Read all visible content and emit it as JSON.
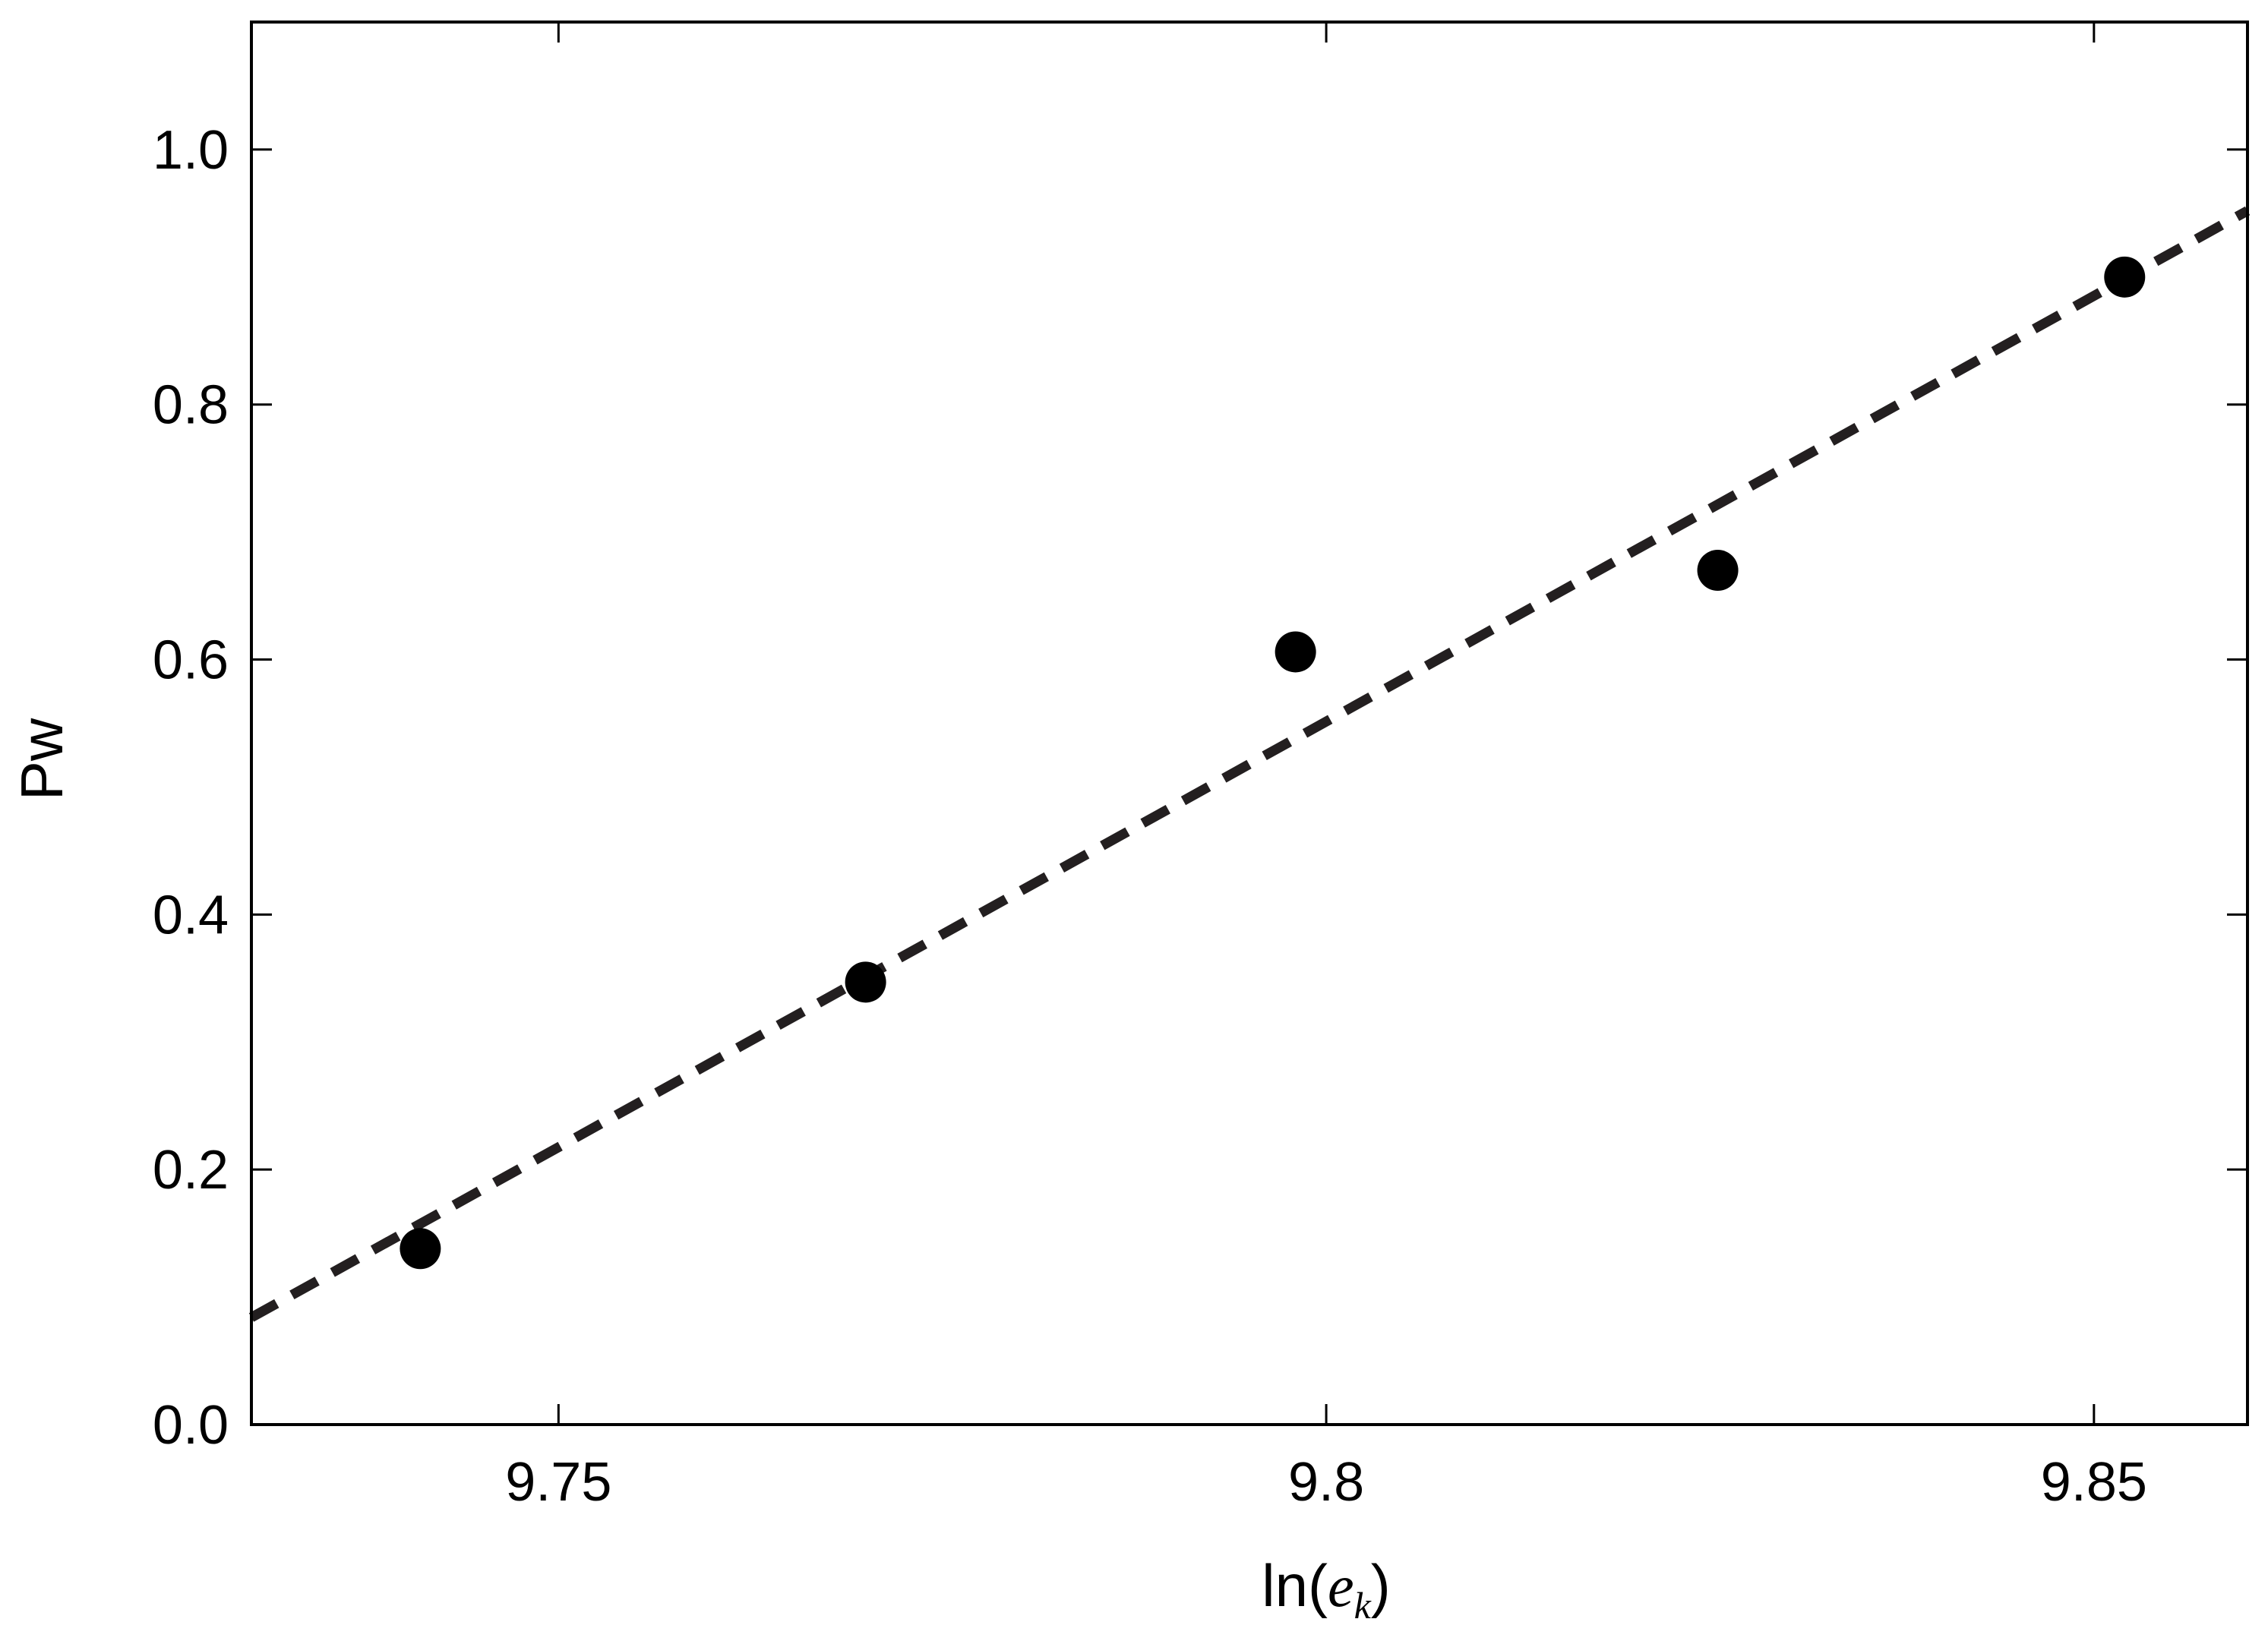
{
  "chart_data": {
    "type": "scatter",
    "x_label": [
      "ln(",
      "e",
      "k",
      ")"
    ],
    "y_label": "Pw",
    "xlim": [
      9.73,
      9.86
    ],
    "ylim": [
      0,
      1.1
    ],
    "xticks": [
      9.75,
      9.8,
      9.85
    ],
    "yticks": [
      {
        "value": 0,
        "label": "0.0"
      },
      0.2,
      0.4,
      0.6,
      0.8,
      {
        "value": 1,
        "label": "1.0"
      }
    ],
    "series": [
      {
        "color": "#000000",
        "x": [
          9.741,
          9.77,
          9.798,
          9.8255,
          9.852
        ],
        "y": [
          0.138,
          0.347,
          0.606,
          0.67,
          0.9
        ]
      }
    ],
    "fit": {
      "color": "#231f20",
      "style": "dashed",
      "x": [
        9.73,
        9.86
      ],
      "y": [
        0.084,
        0.952
      ]
    }
  }
}
